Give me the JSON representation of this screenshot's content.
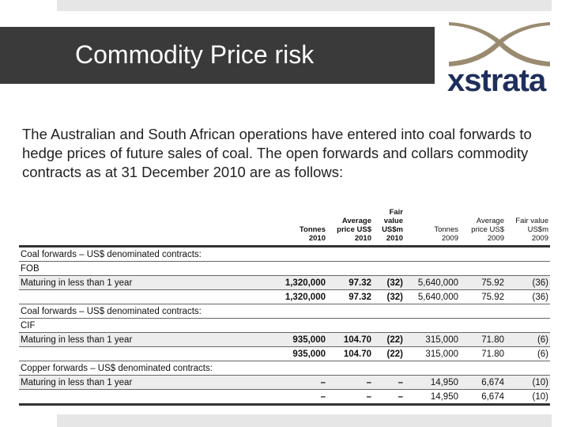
{
  "slide": {
    "title": "Commodity Price risk",
    "logo_text": "xstrata",
    "intro": "The Australian and South African operations have entered into coal forwards to hedge prices of future sales of coal. The open forwards and collars commodity contracts as at 31 December 2010 are as follows:"
  },
  "table": {
    "headers": [
      {
        "line1": "",
        "line2": "Tonnes",
        "line3": "2010"
      },
      {
        "line1": "Average",
        "line2": "price US$",
        "line3": "2010"
      },
      {
        "line1": "Fair value",
        "line2": "US$m",
        "line3": "2010"
      },
      {
        "line1": "",
        "line2": "Tonnes",
        "line3": "2009"
      },
      {
        "line1": "Average",
        "line2": "price US$",
        "line3": "2009"
      },
      {
        "line1": "Fair value",
        "line2": "US$m",
        "line3": "2009"
      }
    ],
    "rows": [
      {
        "label": "Coal forwards – US$ denominated contracts:",
        "cells": [
          "",
          "",
          "",
          "",
          "",
          ""
        ]
      },
      {
        "label": "FOB",
        "cells": [
          "",
          "",
          "",
          "",
          "",
          ""
        ]
      },
      {
        "label": "Maturing in less than 1 year",
        "cells": [
          "1,320,000",
          "97.32",
          "(32)",
          "5,640,000",
          "75.92",
          "(36)"
        ]
      },
      {
        "label": "",
        "cells": [
          "1,320,000",
          "97.32",
          "(32)",
          "5,640,000",
          "75.92",
          "(36)"
        ]
      },
      {
        "label": "Coal forwards – US$ denominated contracts:",
        "cells": [
          "",
          "",
          "",
          "",
          "",
          ""
        ]
      },
      {
        "label": "CIF",
        "cells": [
          "",
          "",
          "",
          "",
          "",
          ""
        ]
      },
      {
        "label": "Maturing in less than 1 year",
        "cells": [
          "935,000",
          "104.70",
          "(22)",
          "315,000",
          "71.80",
          "(6)"
        ]
      },
      {
        "label": "",
        "cells": [
          "935,000",
          "104.70",
          "(22)",
          "315,000",
          "71.80",
          "(6)"
        ]
      },
      {
        "label": "Copper forwards – US$ denominated contracts:",
        "cells": [
          "",
          "",
          "",
          "",
          "",
          ""
        ]
      },
      {
        "label": "Maturing in less than 1 year",
        "cells": [
          "–",
          "–",
          "–",
          "14,950",
          "6,674",
          "(10)"
        ]
      },
      {
        "label": "",
        "cells": [
          "–",
          "–",
          "–",
          "14,950",
          "6,674",
          "(10)"
        ]
      }
    ]
  }
}
